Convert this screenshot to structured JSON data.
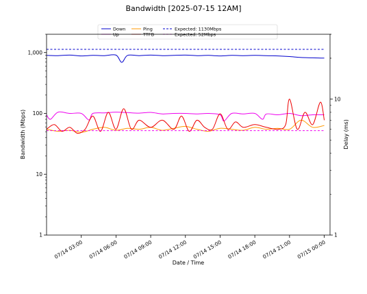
{
  "chart_data": {
    "type": "line",
    "title": "Bandwidth [2025-07-15 12AM]",
    "xlabel": "Date / Time",
    "ylabel": "Bandwidth (Mbps)",
    "ylabel_right": "Delay (ms)",
    "y_scale": "log",
    "ylim": [
      1,
      2000
    ],
    "y2_scale": "log",
    "y2lim": [
      1,
      30
    ],
    "x_range": [
      "2025-07-14 00:00",
      "2025-07-15 00:30"
    ],
    "x_ticks": [
      "07/14 03:00",
      "07/14 06:00",
      "07/14 09:00",
      "07/14 12:00",
      "07/14 15:00",
      "07/14 18:00",
      "07/14 21:00",
      "07/15 00:00"
    ],
    "y_ticks": [
      "1",
      "10",
      "100",
      "1,000"
    ],
    "y2_ticks": [
      "1",
      "10"
    ],
    "grid": false,
    "legend_position": "top-center",
    "series": [
      {
        "name": "Down",
        "axis": "left",
        "color": "#0000cc",
        "style": "solid",
        "x": [
          "2025-07-14 00:00",
          "2025-07-14 01:00",
          "2025-07-14 02:00",
          "2025-07-14 03:00",
          "2025-07-14 04:00",
          "2025-07-14 05:00",
          "2025-07-14 06:00",
          "2025-07-14 06:30",
          "2025-07-14 07:00",
          "2025-07-14 08:00",
          "2025-07-14 09:00",
          "2025-07-14 10:00",
          "2025-07-14 11:00",
          "2025-07-14 12:00",
          "2025-07-14 13:00",
          "2025-07-14 14:00",
          "2025-07-14 15:00",
          "2025-07-14 16:00",
          "2025-07-14 17:00",
          "2025-07-14 18:00",
          "2025-07-14 19:00",
          "2025-07-14 20:00",
          "2025-07-14 21:00",
          "2025-07-14 22:00",
          "2025-07-14 23:00",
          "2025-07-15 00:00"
        ],
        "values": [
          900,
          890,
          910,
          880,
          900,
          890,
          910,
          690,
          900,
          890,
          910,
          890,
          900,
          910,
          890,
          900,
          880,
          900,
          890,
          900,
          890,
          880,
          860,
          830,
          820,
          810
        ]
      },
      {
        "name": "Up",
        "axis": "left",
        "color": "#ee00ee",
        "style": "solid",
        "x": [
          "2025-07-14 00:00",
          "2025-07-14 00:20",
          "2025-07-14 01:00",
          "2025-07-14 02:00",
          "2025-07-14 03:00",
          "2025-07-14 03:40",
          "2025-07-14 04:00",
          "2025-07-14 05:00",
          "2025-07-14 06:00",
          "2025-07-14 07:00",
          "2025-07-14 08:00",
          "2025-07-14 09:00",
          "2025-07-14 10:00",
          "2025-07-14 11:00",
          "2025-07-14 12:00",
          "2025-07-14 13:00",
          "2025-07-14 14:00",
          "2025-07-14 15:00",
          "2025-07-14 15:20",
          "2025-07-14 16:00",
          "2025-07-14 17:00",
          "2025-07-14 18:00",
          "2025-07-14 18:40",
          "2025-07-14 19:00",
          "2025-07-14 20:00",
          "2025-07-14 21:00",
          "2025-07-14 22:00",
          "2025-07-14 23:00",
          "2025-07-15 00:00"
        ],
        "values": [
          95,
          80,
          105,
          100,
          100,
          78,
          100,
          102,
          105,
          103,
          101,
          104,
          98,
          100,
          100,
          98,
          100,
          95,
          75,
          100,
          98,
          100,
          80,
          98,
          95,
          100,
          92,
          95,
          95
        ]
      },
      {
        "name": "Ping",
        "axis": "right",
        "color": "#ff9900",
        "style": "solid",
        "x": [
          "2025-07-14 00:00",
          "2025-07-14 01:00",
          "2025-07-14 02:00",
          "2025-07-14 03:00",
          "2025-07-14 04:00",
          "2025-07-14 05:00",
          "2025-07-14 06:00",
          "2025-07-14 07:00",
          "2025-07-14 08:00",
          "2025-07-14 09:00",
          "2025-07-14 10:00",
          "2025-07-14 11:00",
          "2025-07-14 12:00",
          "2025-07-14 13:00",
          "2025-07-14 14:00",
          "2025-07-14 15:00",
          "2025-07-14 16:00",
          "2025-07-14 17:00",
          "2025-07-14 18:00",
          "2025-07-14 19:00",
          "2025-07-14 20:00",
          "2025-07-14 21:00",
          "2025-07-14 22:00",
          "2025-07-14 23:00",
          "2025-07-15 00:00"
        ],
        "values": [
          6.0,
          5.8,
          5.9,
          5.7,
          6.0,
          6.2,
          5.9,
          6.1,
          6.0,
          6.2,
          5.9,
          6.1,
          6.3,
          6.0,
          5.8,
          6.1,
          6.0,
          5.9,
          6.2,
          6.0,
          6.1,
          6.0,
          7.0,
          6.2,
          6.4
        ]
      },
      {
        "name": "TTFB",
        "axis": "right",
        "color": "#ee0000",
        "style": "solid",
        "x": [
          "2025-07-14 00:00",
          "2025-07-14 00:40",
          "2025-07-14 01:20",
          "2025-07-14 02:00",
          "2025-07-14 02:40",
          "2025-07-14 03:20",
          "2025-07-14 04:00",
          "2025-07-14 04:40",
          "2025-07-14 05:20",
          "2025-07-14 06:00",
          "2025-07-14 06:40",
          "2025-07-14 07:20",
          "2025-07-14 08:00",
          "2025-07-14 09:00",
          "2025-07-14 10:00",
          "2025-07-14 11:00",
          "2025-07-14 11:40",
          "2025-07-14 12:20",
          "2025-07-14 13:00",
          "2025-07-14 13:40",
          "2025-07-14 14:20",
          "2025-07-14 15:00",
          "2025-07-14 15:40",
          "2025-07-14 16:20",
          "2025-07-14 17:00",
          "2025-07-14 18:00",
          "2025-07-14 19:00",
          "2025-07-14 20:00",
          "2025-07-14 20:40",
          "2025-07-14 21:00",
          "2025-07-14 21:40",
          "2025-07-14 22:20",
          "2025-07-14 23:00",
          "2025-07-14 23:40",
          "2025-07-15 00:00"
        ],
        "values": [
          6.0,
          6.5,
          5.8,
          6.2,
          5.6,
          6.0,
          7.5,
          5.8,
          8.0,
          6.0,
          8.5,
          6.0,
          7.0,
          6.2,
          7.0,
          6.0,
          7.5,
          5.8,
          7.0,
          6.2,
          6.0,
          7.8,
          6.0,
          6.8,
          6.2,
          6.5,
          6.2,
          6.0,
          6.5,
          10.0,
          6.0,
          8.0,
          6.5,
          9.5,
          7.0
        ]
      },
      {
        "name": "Expected: 1130Mbps",
        "axis": "left",
        "color": "#0000cc",
        "style": "dashed",
        "x": [
          "2025-07-14 00:00",
          "2025-07-15 00:00"
        ],
        "values": [
          1130,
          1130
        ]
      },
      {
        "name": "Expected: 52Mbps",
        "axis": "left",
        "color": "#ee00ee",
        "style": "dashed",
        "x": [
          "2025-07-14 00:00",
          "2025-07-15 00:00"
        ],
        "values": [
          52,
          52
        ]
      }
    ]
  }
}
